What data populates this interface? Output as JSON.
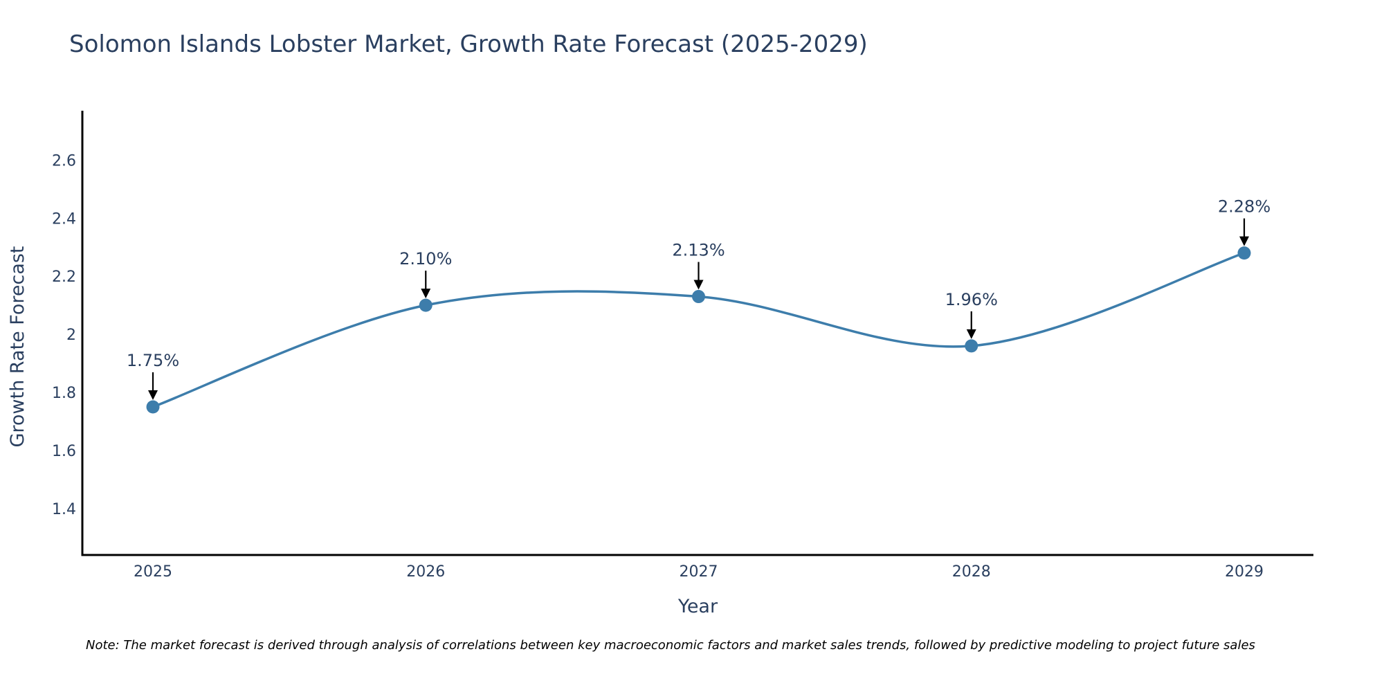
{
  "chart_data": {
    "type": "line",
    "title": "Solomon Islands Lobster Market, Growth Rate Forecast (2025-2029)",
    "xlabel": "Year",
    "ylabel": "Growth Rate Forecast",
    "categories": [
      "2025",
      "2026",
      "2027",
      "2028",
      "2029"
    ],
    "values": [
      1.75,
      2.1,
      2.13,
      1.96,
      2.28
    ],
    "data_labels": [
      "1.75%",
      "2.10%",
      "2.13%",
      "1.96%",
      "2.28%"
    ],
    "y_ticks": [
      1.4,
      1.6,
      1.8,
      2.0,
      2.2,
      2.4,
      2.6
    ],
    "y_tick_labels": [
      "1.4",
      "1.6",
      "1.8",
      "2",
      "2.2",
      "2.4",
      "2.6"
    ],
    "ylim": [
      1.24,
      2.77
    ],
    "line_shape": "spline",
    "grid": false,
    "legend": "none",
    "line_color": "#3d7dab",
    "marker_color": "#3d7dab",
    "note": "Note: The market forecast is derived through analysis of correlations between key macroeconomic factors and market sales trends, followed by predictive modeling to project future sales"
  }
}
